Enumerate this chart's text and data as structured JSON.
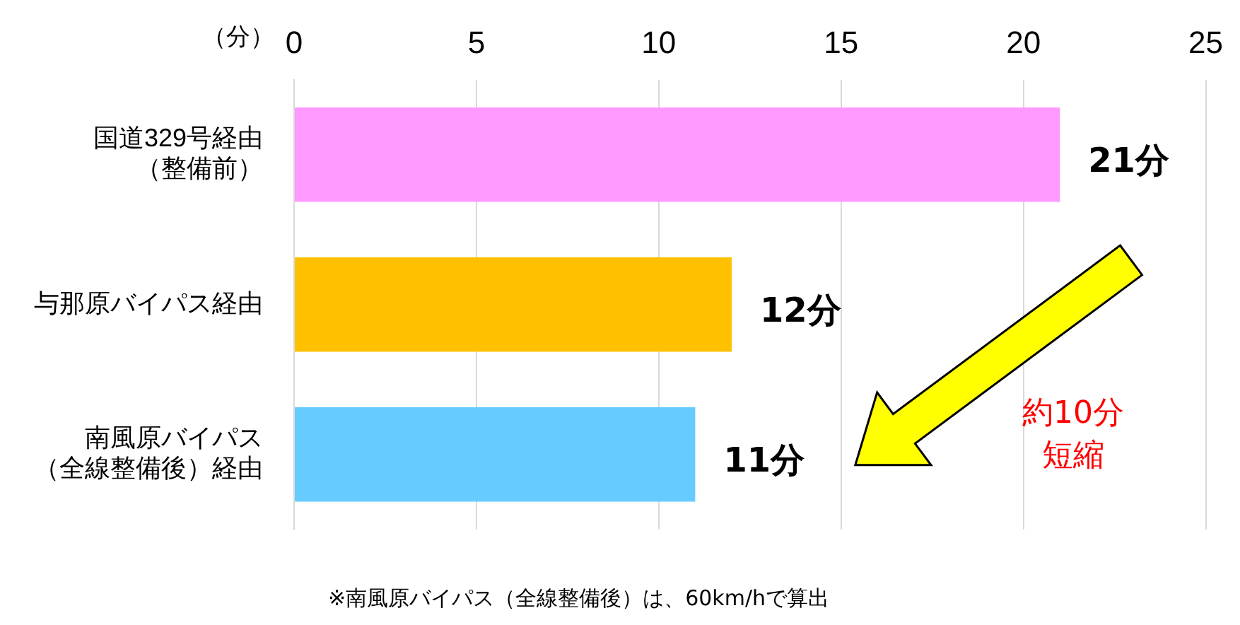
{
  "chart_data": {
    "type": "bar",
    "orientation": "horizontal",
    "xlabel": "（分）",
    "categories": [
      "国道329号経由（整備前）",
      "与那原バイパス経由",
      "南風原バイパス（全線整備後）経由"
    ],
    "values": [
      21,
      12,
      11
    ],
    "colors": [
      "#ff99ff",
      "#ffc000",
      "#66ccff"
    ],
    "value_labels": [
      "21分",
      "12分",
      "11分"
    ],
    "xlim": [
      0,
      25
    ],
    "xticks": [
      0,
      5,
      10,
      15,
      20,
      25
    ],
    "grid": "x",
    "legend": false,
    "annotations": [
      "約10分短縮",
      "※南風原バイパス（全線整備後）は、60km/hで算出"
    ]
  }
}
